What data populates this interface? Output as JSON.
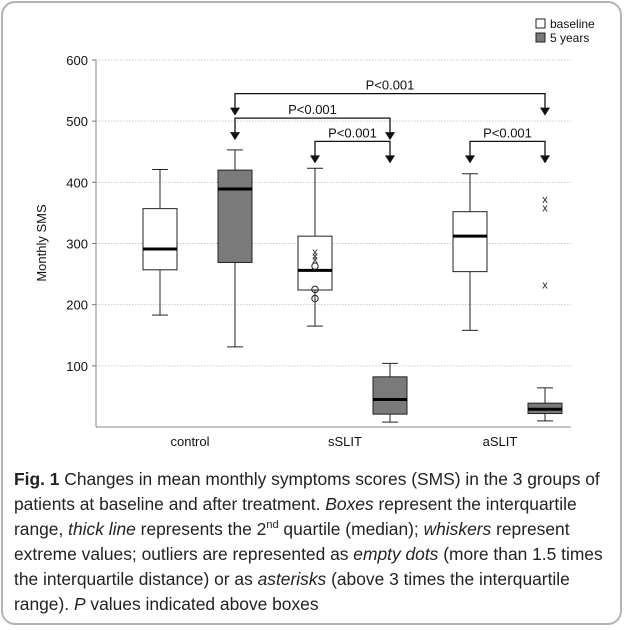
{
  "chart_data": {
    "type": "box",
    "ylabel": "Monthly SMS",
    "ylim": [
      0,
      600
    ],
    "yticks": [
      100,
      200,
      300,
      400,
      500,
      600
    ],
    "categories": [
      "control",
      "sSLIT",
      "aSLIT"
    ],
    "legend": {
      "position": "top-right",
      "entries": [
        {
          "name": "baseline",
          "color": "#ffffff"
        },
        {
          "name": "5 years",
          "color": "#7a7a7a"
        }
      ]
    },
    "series": [
      {
        "name": "baseline",
        "color": "#ffffff",
        "boxes": [
          {
            "category": "control",
            "min": 183,
            "q1": 257,
            "median": 291,
            "q3": 357,
            "max": 421
          },
          {
            "category": "sSLIT",
            "min": 165,
            "q1": 224,
            "median": 256,
            "q3": 312,
            "max": 423
          },
          {
            "category": "aSLIT",
            "min": 158,
            "q1": 254,
            "median": 312,
            "q3": 352,
            "max": 414
          }
        ]
      },
      {
        "name": "5 years",
        "color": "#7a7a7a",
        "boxes": [
          {
            "category": "control",
            "min": 131,
            "q1": 269,
            "median": 389,
            "q3": 420,
            "max": 453
          },
          {
            "category": "sSLIT",
            "min": 8,
            "q1": 21,
            "median": 45,
            "q3": 82,
            "max": 104
          },
          {
            "category": "aSLIT",
            "min": 10,
            "q1": 22,
            "median": 29,
            "q3": 39,
            "max": 64
          }
        ]
      }
    ],
    "outliers": [
      {
        "category": "sSLIT",
        "group": "baseline",
        "marker": "x",
        "value": 287
      },
      {
        "category": "sSLIT",
        "group": "baseline",
        "marker": "x",
        "value": 280
      },
      {
        "category": "sSLIT",
        "group": "baseline",
        "marker": "x",
        "value": 275
      },
      {
        "category": "sSLIT",
        "group": "baseline",
        "marker": "o",
        "value": 263
      },
      {
        "category": "sSLIT",
        "group": "baseline",
        "marker": "o",
        "value": 225
      },
      {
        "category": "sSLIT",
        "group": "baseline",
        "marker": "o",
        "value": 210
      },
      {
        "category": "aSLIT",
        "group": "5 years",
        "marker": "x",
        "value": 373
      },
      {
        "category": "aSLIT",
        "group": "5 years",
        "marker": "x",
        "value": 359
      },
      {
        "category": "aSLIT",
        "group": "5 years",
        "marker": "x",
        "value": 233
      }
    ],
    "annotations": [
      {
        "label": "P<0.001",
        "from": "control/5 years",
        "to": "aSLIT/5 years",
        "y": 545
      },
      {
        "label": "P<0.001",
        "from": "control/5 years",
        "to": "sSLIT/5 years",
        "y": 505
      },
      {
        "label": "P<0.001",
        "from": "sSLIT/baseline",
        "to": "sSLIT/5 years",
        "y": 467
      },
      {
        "label": "P<0.001",
        "from": "aSLIT/baseline",
        "to": "aSLIT/5 years",
        "y": 467
      }
    ],
    "grid": true
  },
  "caption": {
    "fig_label": "Fig. 1",
    "segments": [
      {
        "t": " Changes in mean monthly symptoms scores (SMS) in the 3 groups of patients at baseline and after treatment. ",
        "s": "n"
      },
      {
        "t": "Boxes",
        "s": "i"
      },
      {
        "t": " represent the interquartile range, ",
        "s": "n"
      },
      {
        "t": "thick line",
        "s": "i"
      },
      {
        "t": " represents the 2",
        "s": "n"
      },
      {
        "t": "nd",
        "s": "sup"
      },
      {
        "t": " quartile (median); ",
        "s": "n"
      },
      {
        "t": "whiskers",
        "s": "i"
      },
      {
        "t": " represent extreme values; outliers are represented as ",
        "s": "n"
      },
      {
        "t": "empty dots",
        "s": "i"
      },
      {
        "t": " (more than 1.5 times the interquartile distance) or as ",
        "s": "n"
      },
      {
        "t": "asterisks",
        "s": "i"
      },
      {
        "t": " (above 3 times the interquartile range). ",
        "s": "n"
      },
      {
        "t": "P",
        "s": "i"
      },
      {
        "t": " values indicated above boxes",
        "s": "n"
      }
    ]
  }
}
